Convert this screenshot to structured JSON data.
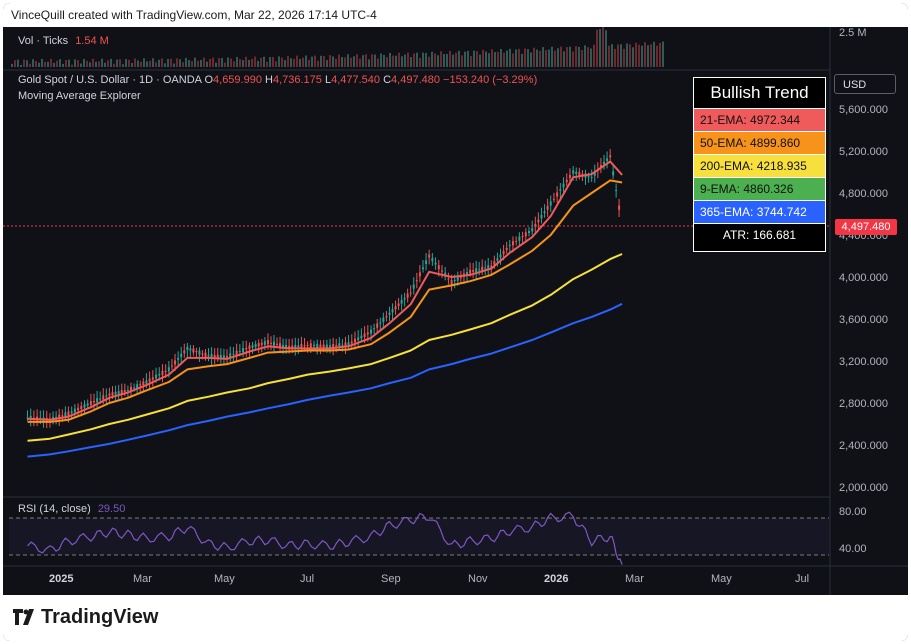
{
  "header": {
    "text": "VinceQuill created with TradingView.com, Mar 22, 2026 17:14 UTC-4"
  },
  "volume": {
    "label": "Vol · Ticks",
    "value": "1.54 M",
    "axis": "2.5 M"
  },
  "symbol": {
    "name": "Gold Spot / U.S. Dollar · 1D · OANDA",
    "open_label": "O",
    "open": "4,659.990",
    "high_label": "H",
    "high": "4,736.175",
    "low_label": "L",
    "low": "4,477.540",
    "close_label": "C",
    "close": "4,497.480",
    "change": "−153.240 (−3.29%)",
    "indicator": "Moving Average Explorer"
  },
  "currency_button": "USD",
  "last_price": "4,497.480",
  "trend_box": {
    "title": "Bullish Trend",
    "rows": [
      {
        "label": "21-EMA: 4972.344",
        "color": "#f05a5a"
      },
      {
        "label": "50-EMA: 4899.860",
        "color": "#f7931a"
      },
      {
        "label": "200-EMA: 4218.935",
        "color": "#f7e03c"
      },
      {
        "label": "9-EMA: 4860.326",
        "color": "#4caf50"
      },
      {
        "label": "365-EMA: 3744.742",
        "color": "#2962ff"
      }
    ],
    "atr": "ATR: 166.681"
  },
  "price_axis": [
    "5,600.000",
    "5,200.000",
    "4,800.000",
    "4,400.000",
    "4,000.000",
    "3,600.000",
    "3,200.000",
    "2,800.000",
    "2,400.000",
    "2,000.000"
  ],
  "rsi": {
    "label": "RSI (14, close)",
    "value": "29.50",
    "levels": [
      "80.00",
      "40.00"
    ]
  },
  "time_axis": [
    "2025",
    "Mar",
    "May",
    "Jul",
    "Sep",
    "Nov",
    "2026",
    "Mar",
    "May",
    "Jul"
  ],
  "brand": "TradingView",
  "chart_data": {
    "type": "line",
    "title": "Gold Spot / U.S. Dollar · 1D · OANDA",
    "ylim": [
      2000,
      5800
    ],
    "x": [
      "2024-12-15",
      "2025-01-01",
      "2025-01-15",
      "2025-02-01",
      "2025-02-15",
      "2025-03-01",
      "2025-03-15",
      "2025-04-01",
      "2025-04-15",
      "2025-05-01",
      "2025-05-15",
      "2025-06-01",
      "2025-06-15",
      "2025-07-01",
      "2025-07-15",
      "2025-08-01",
      "2025-08-15",
      "2025-09-01",
      "2025-09-15",
      "2025-10-01",
      "2025-10-15",
      "2025-11-01",
      "2025-11-15",
      "2025-12-01",
      "2025-12-15",
      "2026-01-01",
      "2026-01-15",
      "2026-02-01",
      "2026-02-15",
      "2026-03-01",
      "2026-03-10"
    ],
    "series": [
      {
        "name": "Price",
        "color": "#26a69a",
        "values": [
          2660,
          2640,
          2700,
          2800,
          2880,
          2920,
          3000,
          3120,
          3320,
          3250,
          3240,
          3330,
          3380,
          3330,
          3350,
          3340,
          3360,
          3480,
          3650,
          3850,
          4200,
          3950,
          4050,
          4100,
          4300,
          4450,
          4700,
          5000,
          4950,
          5150,
          4497
        ]
      },
      {
        "name": "21-EMA",
        "color": "#f05a5a",
        "values": [
          2650,
          2640,
          2670,
          2760,
          2850,
          2900,
          2970,
          3070,
          3230,
          3230,
          3220,
          3290,
          3340,
          3320,
          3320,
          3320,
          3340,
          3420,
          3560,
          3740,
          4050,
          4000,
          4020,
          4080,
          4230,
          4380,
          4580,
          4950,
          4980,
          5100,
          4972
        ]
      },
      {
        "name": "50-EMA",
        "color": "#f7931a",
        "values": [
          2620,
          2620,
          2640,
          2720,
          2800,
          2850,
          2920,
          3000,
          3120,
          3150,
          3170,
          3230,
          3280,
          3290,
          3300,
          3300,
          3310,
          3360,
          3470,
          3620,
          3880,
          3920,
          3960,
          4020,
          4120,
          4250,
          4400,
          4680,
          4800,
          4920,
          4900
        ]
      },
      {
        "name": "200-EMA",
        "color": "#f7e03c",
        "values": [
          2440,
          2460,
          2500,
          2550,
          2600,
          2640,
          2690,
          2750,
          2820,
          2860,
          2900,
          2940,
          2990,
          3030,
          3070,
          3100,
          3130,
          3170,
          3230,
          3300,
          3400,
          3450,
          3500,
          3560,
          3640,
          3730,
          3830,
          3980,
          4070,
          4170,
          4219
        ]
      },
      {
        "name": "365-EMA",
        "color": "#2962ff",
        "values": [
          2290,
          2310,
          2340,
          2380,
          2410,
          2450,
          2490,
          2540,
          2590,
          2630,
          2670,
          2710,
          2750,
          2790,
          2830,
          2870,
          2900,
          2940,
          2990,
          3040,
          3120,
          3170,
          3220,
          3270,
          3330,
          3400,
          3470,
          3560,
          3620,
          3690,
          3745
        ]
      }
    ],
    "rsi": {
      "ylim": [
        0,
        100
      ],
      "levels": [
        80,
        40
      ],
      "values": [
        50,
        45,
        55,
        60,
        65,
        62,
        58,
        60,
        70,
        52,
        48,
        55,
        56,
        50,
        52,
        50,
        54,
        60,
        72,
        78,
        82,
        50,
        55,
        58,
        66,
        70,
        80,
        82,
        55,
        60,
        29.5
      ]
    }
  }
}
